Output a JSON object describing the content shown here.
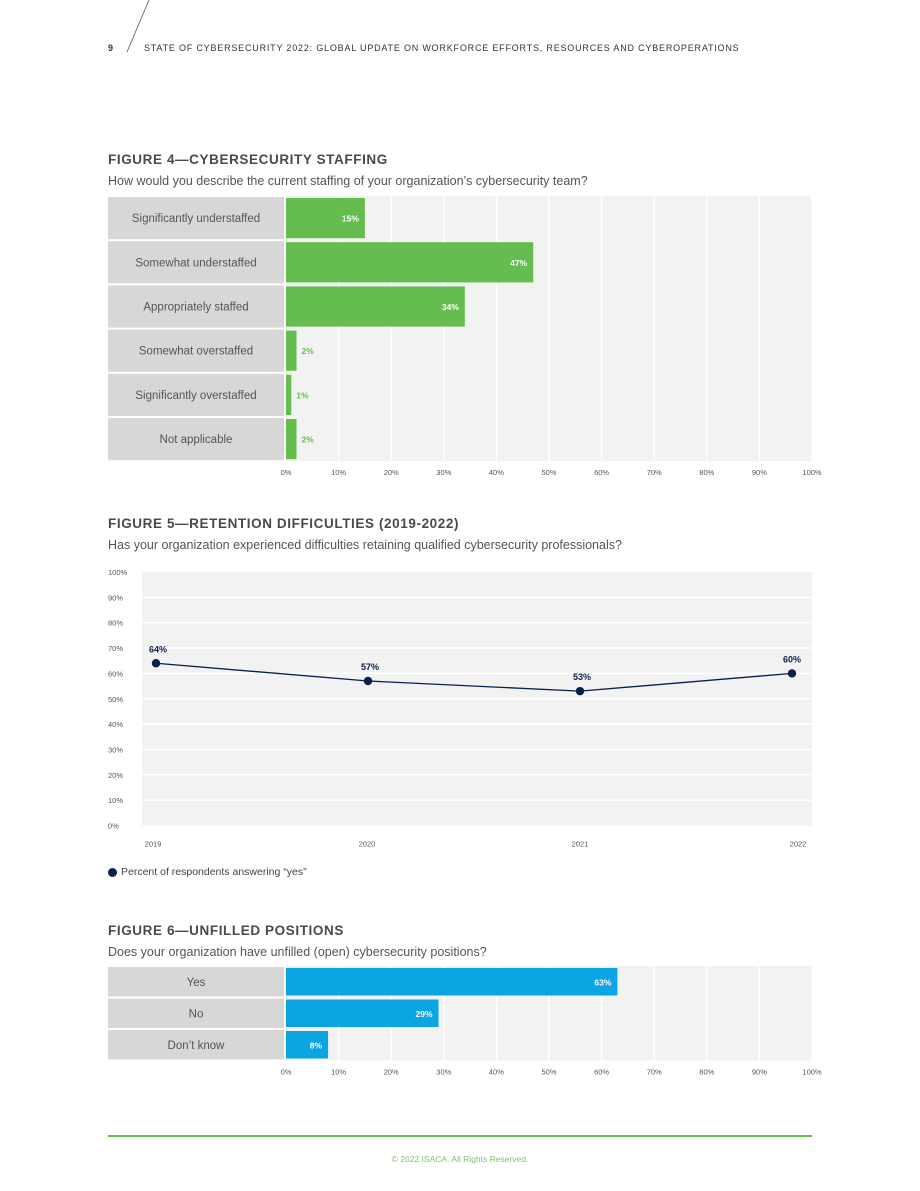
{
  "header": {
    "page_number": "9",
    "running_title": "STATE OF CYBERSECURITY 2022: GLOBAL UPDATE ON WORKFORCE EFFORTS, RESOURCES AND CYBEROPERATIONS"
  },
  "figure4": {
    "title": "FIGURE 4—CYBERSECURITY STAFFING",
    "subtitle": "How would you describe the current staffing of your organization’s cybersecurity team?"
  },
  "figure5": {
    "title": "FIGURE 5—RETENTION DIFFICULTIES (2019-2022)",
    "subtitle": "Has your organization experienced difficulties retaining qualified cybersecurity professionals?",
    "legend": "Percent of respondents answering “yes”"
  },
  "figure6": {
    "title": "FIGURE 6—UNFILLED POSITIONS",
    "subtitle": "Does your organization have unfilled (open) cybersecurity positions?"
  },
  "footer": {
    "copyright": "© 2022 ISACA. All Rights Reserved."
  },
  "colors": {
    "green": "#66bd4f",
    "blue": "#0ba5e3",
    "navy": "#0b1f4d",
    "label_bg": "#d7d7d7",
    "plot_bg": "#f2f2f2"
  },
  "chart_data": [
    {
      "type": "bar",
      "orientation": "horizontal",
      "categories": [
        "Significantly understaffed",
        "Somewhat understaffed",
        "Appropriately staffed",
        "Somewhat overstaffed",
        "Significantly overstaffed",
        "Not applicable"
      ],
      "values": [
        15,
        47,
        34,
        2,
        1,
        2
      ],
      "value_labels": [
        "15%",
        "47%",
        "34%",
        "2%",
        "1%",
        "2%"
      ],
      "xticks": [
        "0%",
        "10%",
        "20%",
        "30%",
        "40%",
        "50%",
        "60%",
        "70%",
        "80%",
        "90%",
        "100%"
      ],
      "xlim": [
        0,
        100
      ],
      "color": "#66bd4f",
      "grid": true
    },
    {
      "type": "line",
      "x": [
        "2019",
        "2020",
        "2021",
        "2022"
      ],
      "values": [
        64,
        57,
        53,
        60
      ],
      "value_labels": [
        "64%",
        "57%",
        "53%",
        "60%"
      ],
      "yticks": [
        "0%",
        "10%",
        "20%",
        "30%",
        "40%",
        "50%",
        "60%",
        "70%",
        "80%",
        "90%",
        "100%"
      ],
      "ylim": [
        0,
        100
      ],
      "series_name": "Percent of respondents answering “yes”",
      "color": "#0b1f4d",
      "grid": true,
      "legend_position": "bottom-left"
    },
    {
      "type": "bar",
      "orientation": "horizontal",
      "categories": [
        "Yes",
        "No",
        "Don’t know"
      ],
      "values": [
        63,
        29,
        8
      ],
      "value_labels": [
        "63%",
        "29%",
        "8%"
      ],
      "xticks": [
        "0%",
        "10%",
        "20%",
        "30%",
        "40%",
        "50%",
        "60%",
        "70%",
        "80%",
        "90%",
        "100%"
      ],
      "xlim": [
        0,
        100
      ],
      "color": "#0ba5e3",
      "grid": true
    }
  ]
}
